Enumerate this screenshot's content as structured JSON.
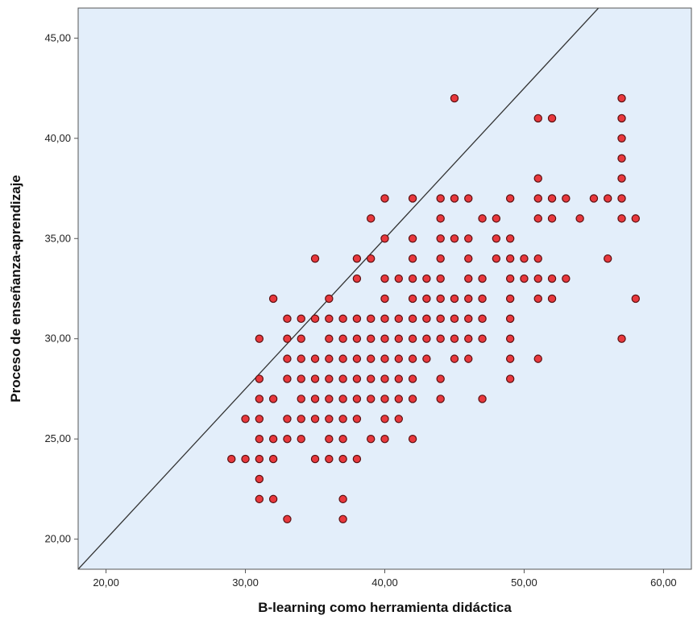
{
  "chart_data": {
    "type": "scatter",
    "title": "",
    "xlabel": "B-learning como herramienta didáctica",
    "ylabel": "Proceso de enseñanza-aprendizaje",
    "xlim": [
      18,
      62
    ],
    "ylim": [
      18.5,
      46.5
    ],
    "xticks": [
      20,
      30,
      40,
      50,
      60
    ],
    "yticks": [
      20,
      25,
      30,
      35,
      40,
      45
    ],
    "xtick_labels": [
      "20,00",
      "30,00",
      "40,00",
      "50,00",
      "60,00"
    ],
    "ytick_labels": [
      "20,00",
      "25,00",
      "30,00",
      "35,00",
      "40,00",
      "45,00"
    ],
    "grid": false,
    "reference_line": {
      "slope": 0.75,
      "intercept": 5
    },
    "colors": {
      "plot_background": "#e3eefa",
      "point_fill": "#e8383d",
      "point_stroke": "#5a1010",
      "line": "#333333"
    },
    "points": [
      [
        29,
        24
      ],
      [
        30,
        24
      ],
      [
        30,
        26
      ],
      [
        31,
        24
      ],
      [
        31,
        25
      ],
      [
        31,
        26
      ],
      [
        31,
        27
      ],
      [
        31,
        28
      ],
      [
        31,
        30
      ],
      [
        31,
        23
      ],
      [
        31,
        22
      ],
      [
        32,
        22
      ],
      [
        32,
        24
      ],
      [
        32,
        25
      ],
      [
        32,
        27
      ],
      [
        32,
        32
      ],
      [
        33,
        21
      ],
      [
        33,
        25
      ],
      [
        33,
        26
      ],
      [
        33,
        28
      ],
      [
        33,
        29
      ],
      [
        33,
        30
      ],
      [
        33,
        31
      ],
      [
        34,
        25
      ],
      [
        34,
        26
      ],
      [
        34,
        27
      ],
      [
        34,
        28
      ],
      [
        34,
        29
      ],
      [
        34,
        30
      ],
      [
        34,
        31
      ],
      [
        35,
        24
      ],
      [
        35,
        26
      ],
      [
        35,
        27
      ],
      [
        35,
        28
      ],
      [
        35,
        29
      ],
      [
        35,
        31
      ],
      [
        35,
        34
      ],
      [
        36,
        24
      ],
      [
        36,
        25
      ],
      [
        36,
        26
      ],
      [
        36,
        27
      ],
      [
        36,
        28
      ],
      [
        36,
        29
      ],
      [
        36,
        30
      ],
      [
        36,
        31
      ],
      [
        36,
        32
      ],
      [
        37,
        21
      ],
      [
        37,
        22
      ],
      [
        37,
        24
      ],
      [
        37,
        25
      ],
      [
        37,
        26
      ],
      [
        37,
        27
      ],
      [
        37,
        28
      ],
      [
        37,
        29
      ],
      [
        37,
        30
      ],
      [
        37,
        31
      ],
      [
        38,
        24
      ],
      [
        38,
        26
      ],
      [
        38,
        27
      ],
      [
        38,
        28
      ],
      [
        38,
        29
      ],
      [
        38,
        30
      ],
      [
        38,
        31
      ],
      [
        38,
        33
      ],
      [
        38,
        34
      ],
      [
        39,
        25
      ],
      [
        39,
        27
      ],
      [
        39,
        28
      ],
      [
        39,
        29
      ],
      [
        39,
        30
      ],
      [
        39,
        31
      ],
      [
        39,
        34
      ],
      [
        39,
        36
      ],
      [
        40,
        25
      ],
      [
        40,
        26
      ],
      [
        40,
        27
      ],
      [
        40,
        28
      ],
      [
        40,
        29
      ],
      [
        40,
        30
      ],
      [
        40,
        31
      ],
      [
        40,
        32
      ],
      [
        40,
        33
      ],
      [
        40,
        35
      ],
      [
        40,
        37
      ],
      [
        41,
        26
      ],
      [
        41,
        27
      ],
      [
        41,
        28
      ],
      [
        41,
        29
      ],
      [
        41,
        30
      ],
      [
        41,
        31
      ],
      [
        41,
        33
      ],
      [
        42,
        25
      ],
      [
        42,
        27
      ],
      [
        42,
        28
      ],
      [
        42,
        29
      ],
      [
        42,
        30
      ],
      [
        42,
        31
      ],
      [
        42,
        32
      ],
      [
        42,
        33
      ],
      [
        42,
        34
      ],
      [
        42,
        35
      ],
      [
        42,
        37
      ],
      [
        43,
        29
      ],
      [
        43,
        30
      ],
      [
        43,
        31
      ],
      [
        43,
        32
      ],
      [
        43,
        33
      ],
      [
        44,
        27
      ],
      [
        44,
        28
      ],
      [
        44,
        30
      ],
      [
        44,
        31
      ],
      [
        44,
        32
      ],
      [
        44,
        33
      ],
      [
        44,
        34
      ],
      [
        44,
        35
      ],
      [
        44,
        36
      ],
      [
        44,
        37
      ],
      [
        45,
        29
      ],
      [
        45,
        30
      ],
      [
        45,
        31
      ],
      [
        45,
        32
      ],
      [
        45,
        35
      ],
      [
        45,
        37
      ],
      [
        45,
        42
      ],
      [
        46,
        29
      ],
      [
        46,
        30
      ],
      [
        46,
        31
      ],
      [
        46,
        32
      ],
      [
        46,
        33
      ],
      [
        46,
        34
      ],
      [
        46,
        35
      ],
      [
        46,
        37
      ],
      [
        47,
        27
      ],
      [
        47,
        30
      ],
      [
        47,
        31
      ],
      [
        47,
        32
      ],
      [
        47,
        33
      ],
      [
        47,
        36
      ],
      [
        48,
        34
      ],
      [
        48,
        35
      ],
      [
        48,
        36
      ],
      [
        49,
        28
      ],
      [
        49,
        29
      ],
      [
        49,
        30
      ],
      [
        49,
        31
      ],
      [
        49,
        32
      ],
      [
        49,
        33
      ],
      [
        49,
        34
      ],
      [
        49,
        35
      ],
      [
        49,
        37
      ],
      [
        50,
        33
      ],
      [
        50,
        34
      ],
      [
        51,
        29
      ],
      [
        51,
        32
      ],
      [
        51,
        33
      ],
      [
        51,
        34
      ],
      [
        51,
        36
      ],
      [
        51,
        37
      ],
      [
        51,
        38
      ],
      [
        51,
        41
      ],
      [
        52,
        32
      ],
      [
        52,
        33
      ],
      [
        52,
        36
      ],
      [
        52,
        37
      ],
      [
        52,
        41
      ],
      [
        53,
        33
      ],
      [
        53,
        37
      ],
      [
        54,
        36
      ],
      [
        55,
        37
      ],
      [
        56,
        34
      ],
      [
        56,
        37
      ],
      [
        57,
        30
      ],
      [
        57,
        36
      ],
      [
        57,
        37
      ],
      [
        57,
        38
      ],
      [
        57,
        39
      ],
      [
        57,
        40
      ],
      [
        57,
        41
      ],
      [
        57,
        42
      ],
      [
        58,
        32
      ],
      [
        58,
        36
      ]
    ]
  }
}
